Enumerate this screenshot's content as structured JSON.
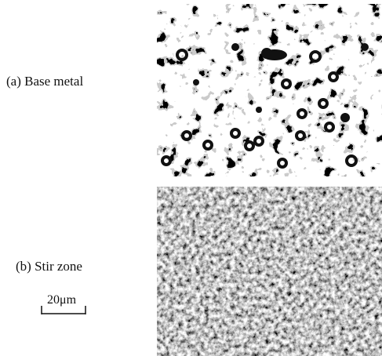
{
  "figure": {
    "panels": [
      {
        "label": "(a) Base metal"
      },
      {
        "label": "(b) Stir zone"
      }
    ],
    "scale_bar": "20μm"
  }
}
